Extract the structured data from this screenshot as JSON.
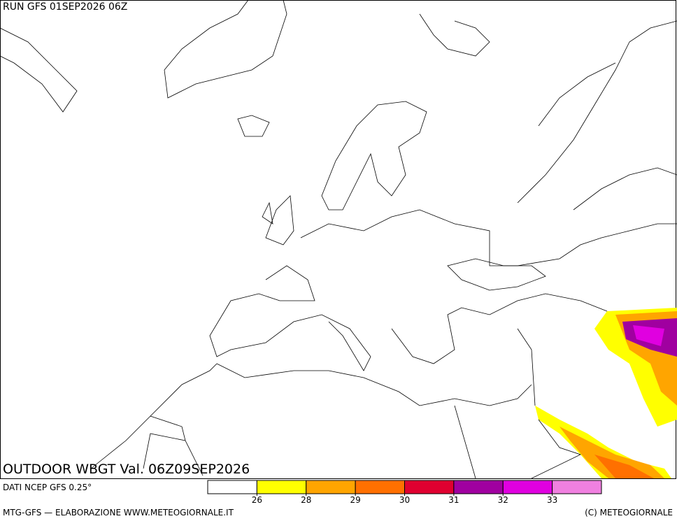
{
  "header": {
    "run": "RUN GFS 01SEP2026 06Z"
  },
  "map": {
    "title": "OUTDOOR WBGT Val. 06Z09SEP2026"
  },
  "footer": {
    "source": "DATI NCEP GFS 0.25°",
    "credit": "MTG-GFS — ELABORAZIONE WWW.METEOGIORNALE.IT",
    "copyright": "(C) METEOGIORNALE"
  },
  "legend": {
    "colors": [
      "#ffffff",
      "#ffff00",
      "#ffa500",
      "#ff7000",
      "#e00030",
      "#a000a0",
      "#e000e0",
      "#f080e0"
    ],
    "ticks": [
      26,
      28,
      29,
      30,
      31,
      32,
      33
    ]
  }
}
